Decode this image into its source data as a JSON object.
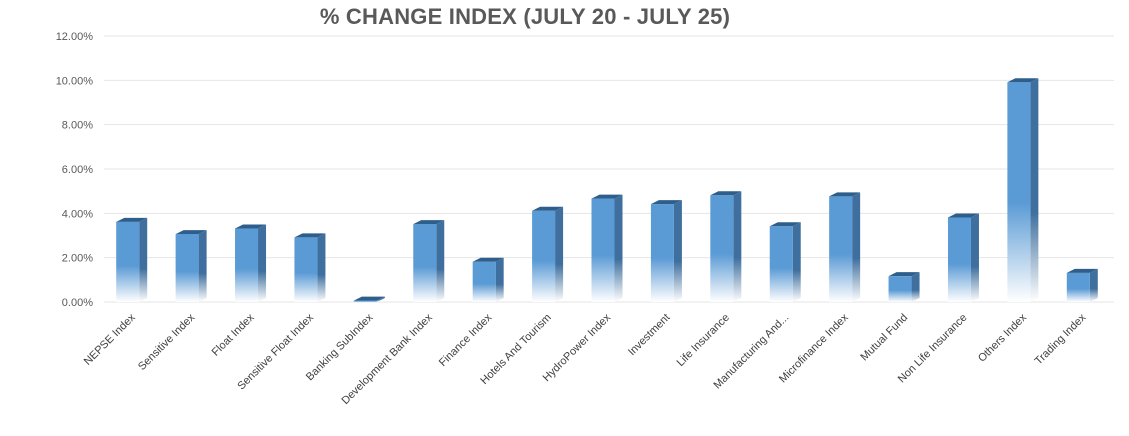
{
  "chart_data": {
    "type": "bar",
    "title": "% CHANGE INDEX (JULY 20 - JULY 25)",
    "categories": [
      "NEPSE Index",
      "Sensitive Index",
      "Float Index",
      "Sensitive Float Index",
      "Banking SubIndex",
      "Development Bank Index",
      "Finance Index",
      "Hotels And Tourism",
      "HydroPower Index",
      "Investment",
      "Life Insurance",
      "Manufacturing And...",
      "Microfinance Index",
      "Mutual Fund",
      "Non Life Insurance",
      "Others Index",
      "Trading Index"
    ],
    "values": [
      3.75,
      3.2,
      3.45,
      3.05,
      0.2,
      3.65,
      1.95,
      4.25,
      4.8,
      4.55,
      4.95,
      3.55,
      4.9,
      1.3,
      3.95,
      10.05,
      1.45
    ],
    "ylim": [
      0,
      12
    ],
    "yticks": [
      0,
      2,
      4,
      6,
      8,
      10,
      12
    ],
    "ytick_labels": [
      "0.00%",
      "2.00%",
      "4.00%",
      "6.00%",
      "8.00%",
      "10.00%",
      "12.00%"
    ],
    "grid": true,
    "colors": {
      "bar_front": "#5b9bd5",
      "bar_side": "#3f6f9e",
      "bar_top": "#2e5f8c",
      "grid": "#e6e6e6"
    }
  }
}
